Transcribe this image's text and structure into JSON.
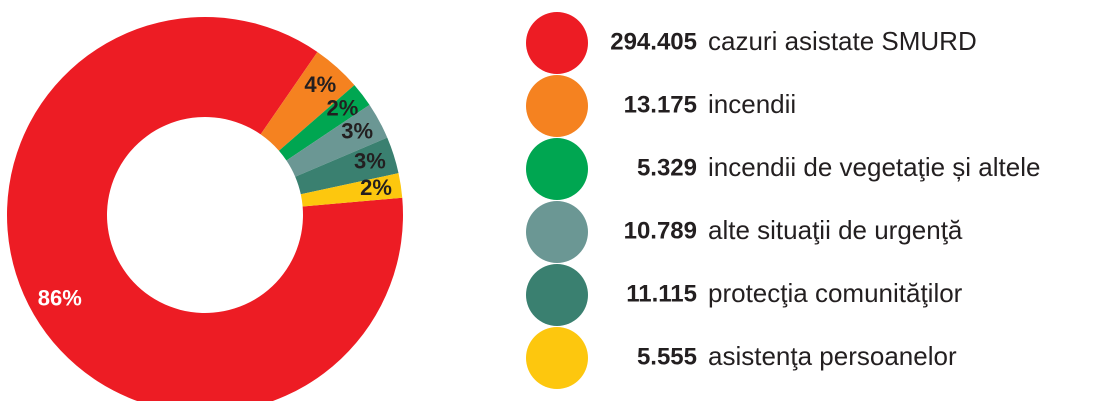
{
  "chart_data": {
    "type": "pie",
    "categories": [
      "cazuri asistate SMURD",
      "incendii",
      "incendii de vegetaţie și altele",
      "alte situaţii de urgenţă",
      "protecţia comunităţilor",
      "asistenţa persoanelor"
    ],
    "values": [
      86,
      4,
      2,
      3,
      3,
      2
    ],
    "value_labels": [
      "86%",
      "4%",
      "2%",
      "3%",
      "3%",
      "2%"
    ],
    "legend_values": [
      "294.405",
      "13.175",
      "5.329",
      "10.789",
      "11.115",
      "5.555"
    ],
    "colors": [
      "#ed1c24",
      "#f58220",
      "#00a651",
      "#6b9794",
      "#3a8070",
      "#fdc70e"
    ],
    "donut": true
  }
}
